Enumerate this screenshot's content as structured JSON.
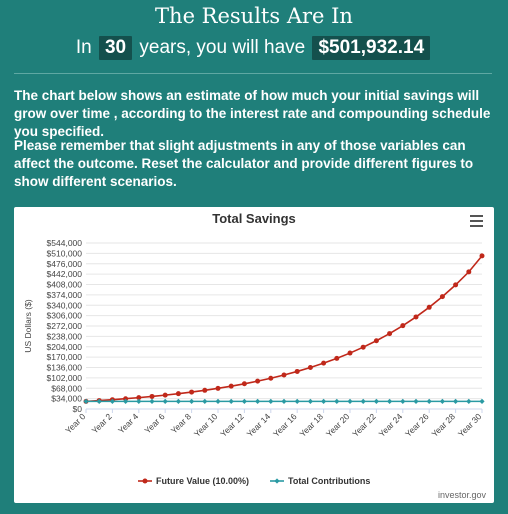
{
  "header": {
    "title": "The Results Are In",
    "prefix": "In",
    "years": "30",
    "middle": "years, you will have",
    "amount": "$501,932.14"
  },
  "paragraphs": {
    "p1": "The chart below shows an estimate of how much your initial savings will grow over time , according to the interest rate and compounding schedule you specified.",
    "p2": "Please remember that slight adjustments in any of those variables can affect the outcome. Reset the calculator and provide different figures to show different scenarios."
  },
  "chart_data": {
    "type": "line",
    "title": "Total Savings",
    "ylabel": "US Dollars ($)",
    "xlabel": "",
    "ylim": [
      0,
      544000
    ],
    "yticks": [
      "$0",
      "$34,000",
      "$68,000",
      "$102,000",
      "$136,000",
      "$170,000",
      "$204,000",
      "$238,000",
      "$272,000",
      "$306,000",
      "$340,000",
      "$374,000",
      "$408,000",
      "$442,000",
      "$476,000",
      "$510,000",
      "$544,000"
    ],
    "categories": [
      "Year 0",
      "Year 1",
      "Year 2",
      "Year 3",
      "Year 4",
      "Year 5",
      "Year 6",
      "Year 7",
      "Year 8",
      "Year 9",
      "Year 10",
      "Year 11",
      "Year 12",
      "Year 13",
      "Year 14",
      "Year 15",
      "Year 16",
      "Year 17",
      "Year 18",
      "Year 19",
      "Year 20",
      "Year 21",
      "Year 22",
      "Year 23",
      "Year 24",
      "Year 25",
      "Year 26",
      "Year 27",
      "Year 28",
      "Year 29",
      "Year 30"
    ],
    "xtick_labels": [
      "Year 0",
      "Year 2",
      "Year 4",
      "Year 6",
      "Year 8",
      "Year 10",
      "Year 12",
      "Year 14",
      "Year 16",
      "Year 18",
      "Year 20",
      "Year 22",
      "Year 24",
      "Year 26",
      "Year 28",
      "Year 30"
    ],
    "series": [
      {
        "name": "Future Value (10.00%)",
        "color": "#c0281a",
        "values": [
          25000,
          27619,
          30512,
          33708,
          37239,
          41140,
          45449,
          50210,
          55469,
          61279,
          67698,
          74789,
          82623,
          91278,
          100840,
          111402,
          123071,
          135963,
          150205,
          165939,
          183320,
          202521,
          223734,
          247169,
          273059,
          301660,
          333258,
          368166,
          406730,
          449334,
          501932
        ]
      },
      {
        "name": "Total Contributions",
        "color": "#2a9aa3",
        "values": [
          25000,
          25000,
          25000,
          25000,
          25000,
          25000,
          25000,
          25000,
          25000,
          25000,
          25000,
          25000,
          25000,
          25000,
          25000,
          25000,
          25000,
          25000,
          25000,
          25000,
          25000,
          25000,
          25000,
          25000,
          25000,
          25000,
          25000,
          25000,
          25000,
          25000,
          25000
        ]
      }
    ],
    "grid": true,
    "legend": "bottom-center"
  },
  "credit": "investor.gov",
  "icons": {
    "menu": "hamburger-menu-icon"
  }
}
